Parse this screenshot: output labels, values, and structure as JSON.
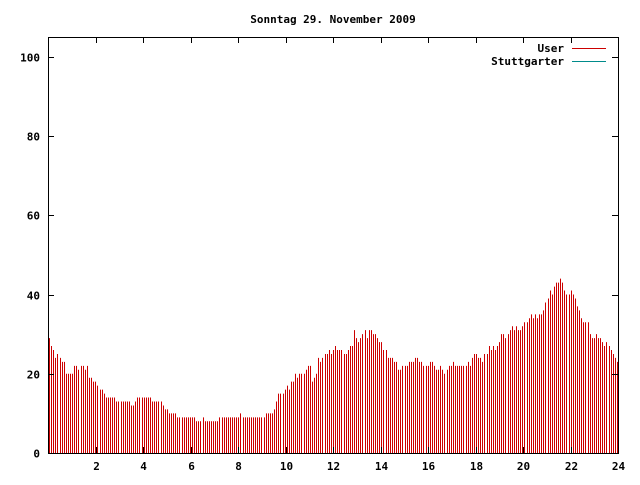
{
  "chart_data": {
    "type": "bar",
    "title": "Sonntag 29. November 2009",
    "xlabel": "",
    "ylabel": "",
    "xlim": [
      0,
      24
    ],
    "ylim": [
      0,
      105
    ],
    "xticks": [
      2,
      4,
      6,
      8,
      10,
      12,
      14,
      16,
      18,
      20,
      22,
      24
    ],
    "yticks": [
      0,
      20,
      40,
      60,
      80,
      100
    ],
    "legend_position": "top-right",
    "grid": false,
    "series": [
      {
        "name": "User",
        "color": "#cc0000",
        "values": [
          29,
          27,
          26,
          24,
          25,
          24,
          23,
          23,
          20,
          20,
          20,
          20,
          22,
          22,
          21,
          22,
          22,
          21,
          22,
          19,
          19,
          18,
          18,
          17,
          16,
          16,
          15,
          14,
          14,
          14,
          14,
          14,
          13,
          13,
          13,
          13,
          13,
          13,
          13,
          12,
          12,
          13,
          14,
          14,
          14,
          14,
          14,
          14,
          14,
          13,
          13,
          13,
          13,
          13,
          12,
          11,
          11,
          10,
          10,
          10,
          10,
          9,
          9,
          9,
          9,
          9,
          9,
          9,
          9,
          9,
          8,
          8,
          8,
          9,
          8,
          8,
          8,
          8,
          8,
          8,
          8,
          9,
          9,
          9,
          9,
          9,
          9,
          9,
          9,
          9,
          9,
          10,
          9,
          9,
          9,
          9,
          9,
          9,
          9,
          9,
          9,
          9,
          9,
          10,
          10,
          10,
          10,
          11,
          13,
          15,
          15,
          15,
          16,
          17,
          16,
          18,
          18,
          20,
          19,
          20,
          20,
          20,
          21,
          22,
          22,
          18,
          19,
          20,
          24,
          23,
          24,
          25,
          25,
          26,
          25,
          26,
          27,
          26,
          26,
          26,
          25,
          25,
          26,
          27,
          27,
          31,
          29,
          28,
          29,
          30,
          31,
          29,
          31,
          31,
          30,
          30,
          29,
          28,
          28,
          26,
          26,
          24,
          24,
          24,
          23,
          23,
          21,
          21,
          22,
          22,
          22,
          23,
          23,
          23,
          24,
          24,
          23,
          23,
          22,
          22,
          22,
          23,
          23,
          22,
          21,
          21,
          22,
          21,
          20,
          21,
          22,
          22,
          23,
          22,
          22,
          22,
          22,
          22,
          22,
          23,
          22,
          24,
          25,
          25,
          24,
          24,
          23,
          25,
          25,
          27,
          26,
          27,
          26,
          27,
          28,
          30,
          30,
          29,
          30,
          31,
          32,
          31,
          32,
          31,
          31,
          32,
          33,
          33,
          34,
          35,
          34,
          35,
          34,
          35,
          35,
          36,
          38,
          39,
          41,
          40,
          42,
          43,
          43,
          44,
          43,
          41,
          40,
          40,
          41,
          40,
          39,
          37,
          36,
          34,
          33,
          33,
          33,
          30,
          29,
          29,
          30,
          29,
          29,
          28,
          27,
          28,
          27,
          26,
          25,
          24,
          23
        ]
      },
      {
        "name": "Stuttgarter",
        "color": "#008b8b",
        "values": []
      }
    ]
  }
}
